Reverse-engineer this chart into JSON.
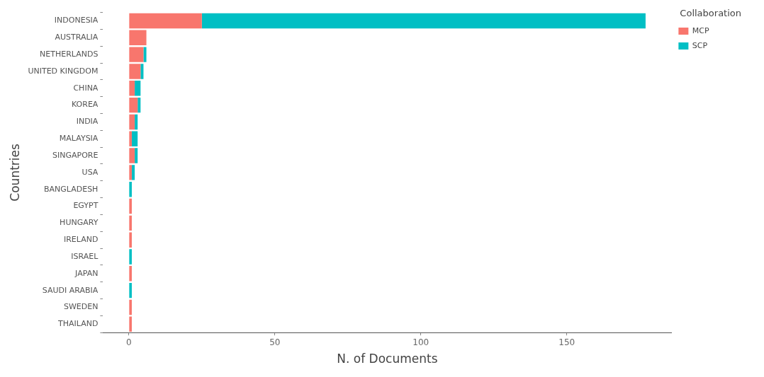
{
  "chart_data": {
    "type": "bar",
    "orientation": "horizontal",
    "stacked": true,
    "xlabel": "N. of Documents",
    "ylabel": "Countries",
    "legend_title": "Collaboration",
    "legend": "top right",
    "grid": false,
    "categories": [
      "INDONESIA",
      "AUSTRALIA",
      "NETHERLANDS",
      "UNITED KINGDOM",
      "CHINA",
      "KOREA",
      "INDIA",
      "MALAYSIA",
      "SINGAPORE",
      "USA",
      "BANGLADESH",
      "EGYPT",
      "HUNGARY",
      "IRELAND",
      "ISRAEL",
      "JAPAN",
      "SAUDI ARABIA",
      "SWEDEN",
      "THAILAND"
    ],
    "series": [
      {
        "name": "MCP",
        "color": "#f8766d",
        "values": [
          25,
          6,
          5,
          4,
          2,
          3,
          2,
          1,
          2,
          1,
          0,
          1,
          1,
          1,
          0,
          1,
          0,
          1,
          1
        ]
      },
      {
        "name": "SCP",
        "color": "#00bfc4",
        "values": [
          152,
          0,
          1,
          1,
          2,
          1,
          1,
          2,
          1,
          1,
          1,
          0,
          0,
          0,
          1,
          0,
          1,
          0,
          0
        ]
      }
    ],
    "xlim": [
      -8.85,
      185.85
    ],
    "xticks": [
      0,
      50,
      100,
      150
    ]
  }
}
